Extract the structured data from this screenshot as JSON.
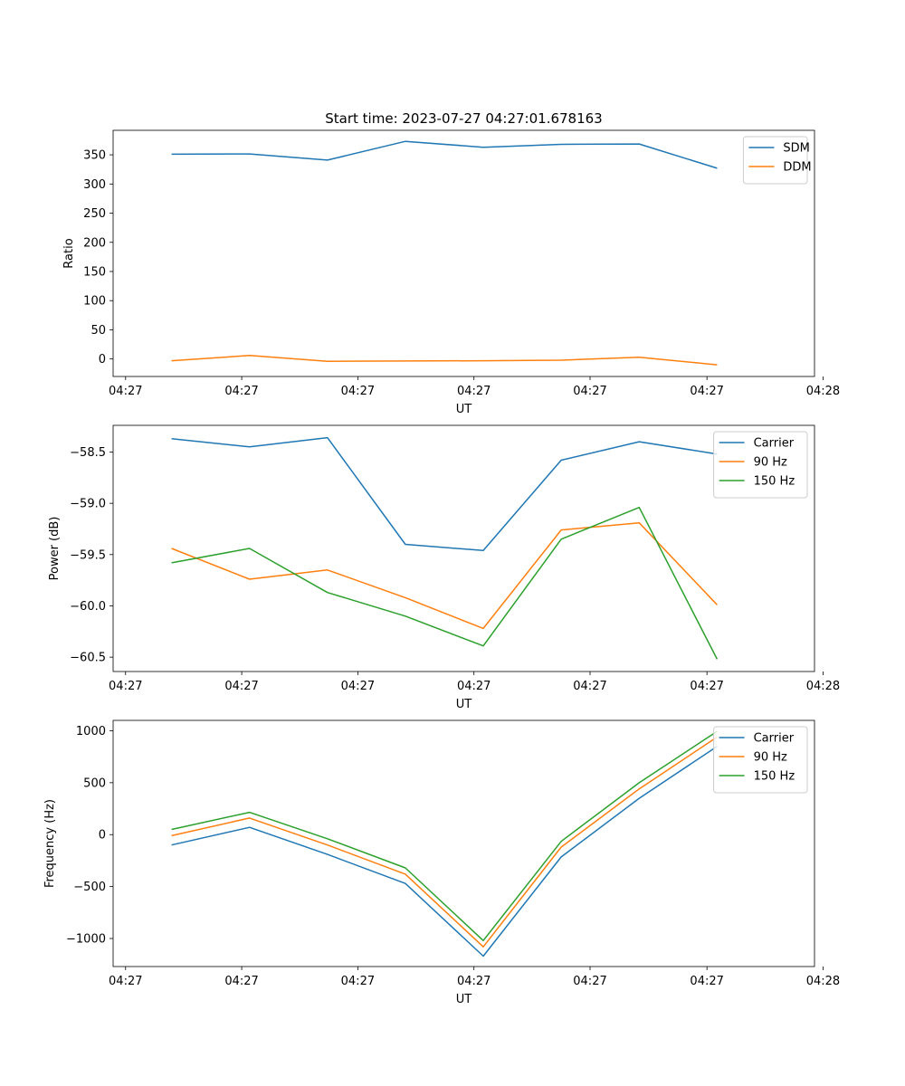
{
  "figure_title": "Start time: 2023-07-27 04:27:01.678163",
  "colors": {
    "blue": "#1f77b4",
    "orange": "#ff7f0e",
    "green": "#2ca02c"
  },
  "chart_data": [
    {
      "type": "line",
      "title": "Start time: 2023-07-27 04:27:01.678163",
      "xlabel": "UT",
      "ylabel": "Ratio",
      "x": [
        1,
        2,
        3,
        4,
        5,
        6,
        7,
        8
      ],
      "xlim": [
        0.25,
        9.25
      ],
      "xticks": [
        0.41,
        1.9,
        3.39,
        4.88,
        6.37,
        7.87,
        9.36
      ],
      "xtick_labels": [
        "04:27",
        "04:27",
        "04:27",
        "04:27",
        "04:27",
        "04:27",
        "04:28"
      ],
      "ylim": [
        -30,
        392
      ],
      "yticks": [
        0,
        50,
        100,
        150,
        200,
        250,
        300,
        350
      ],
      "ytick_labels": [
        "0",
        "50",
        "100",
        "150",
        "200",
        "250",
        "300",
        "350"
      ],
      "legend": "top-right",
      "series": [
        {
          "name": "SDM",
          "color": "#1f77b4",
          "values": [
            351,
            351.5,
            341,
            373,
            363,
            368,
            368.5,
            327
          ]
        },
        {
          "name": "DDM",
          "color": "#ff7f0e",
          "values": [
            -3,
            6,
            -4,
            -3.5,
            -3,
            -2,
            3,
            -10
          ]
        }
      ]
    },
    {
      "type": "line",
      "xlabel": "UT",
      "ylabel": "Power (dB)",
      "x": [
        1,
        2,
        3,
        4,
        5,
        6,
        7,
        8
      ],
      "xlim": [
        0.25,
        9.25
      ],
      "xticks": [
        0.41,
        1.9,
        3.39,
        4.88,
        6.37,
        7.87,
        9.36
      ],
      "xtick_labels": [
        "04:27",
        "04:27",
        "04:27",
        "04:27",
        "04:27",
        "04:27",
        "04:28"
      ],
      "ylim": [
        -60.64,
        -58.24
      ],
      "yticks": [
        -60.5,
        -60.0,
        -59.5,
        -59.0,
        -58.5
      ],
      "ytick_labels": [
        "−60.5",
        "−60.0",
        "−59.5",
        "−59.0",
        "−58.5"
      ],
      "legend": "top-right",
      "series": [
        {
          "name": "Carrier",
          "color": "#1f77b4",
          "values": [
            -58.37,
            -58.45,
            -58.36,
            -59.4,
            -59.46,
            -58.58,
            -58.4,
            -58.52
          ]
        },
        {
          "name": "90 Hz",
          "color": "#ff7f0e",
          "values": [
            -59.44,
            -59.74,
            -59.65,
            -59.92,
            -60.22,
            -59.26,
            -59.19,
            -59.99
          ]
        },
        {
          "name": "150 Hz",
          "color": "#2ca02c",
          "values": [
            -59.58,
            -59.44,
            -59.87,
            -60.1,
            -60.39,
            -59.35,
            -59.04,
            -60.52
          ]
        }
      ]
    },
    {
      "type": "line",
      "xlabel": "UT",
      "ylabel": "Frequency (Hz)",
      "x": [
        1,
        2,
        3,
        4,
        5,
        6,
        7,
        8
      ],
      "xlim": [
        0.25,
        9.25
      ],
      "xticks": [
        0.41,
        1.9,
        3.39,
        4.88,
        6.37,
        7.87,
        9.36
      ],
      "xtick_labels": [
        "04:27",
        "04:27",
        "04:27",
        "04:27",
        "04:27",
        "04:27",
        "04:28"
      ],
      "ylim": [
        -1270,
        1100
      ],
      "yticks": [
        -1000,
        -500,
        0,
        500,
        1000
      ],
      "ytick_labels": [
        "−1000",
        "−500",
        "0",
        "500",
        "1000"
      ],
      "legend": "top-right",
      "series": [
        {
          "name": "Carrier",
          "color": "#1f77b4",
          "values": [
            -100,
            70,
            -190,
            -470,
            -1170,
            -215,
            350,
            850
          ]
        },
        {
          "name": "90 Hz",
          "color": "#ff7f0e",
          "values": [
            -10,
            160,
            -100,
            -380,
            -1080,
            -120,
            440,
            940
          ]
        },
        {
          "name": "150 Hz",
          "color": "#2ca02c",
          "values": [
            50,
            215,
            -40,
            -320,
            -1020,
            -65,
            500,
            995
          ]
        }
      ]
    }
  ]
}
